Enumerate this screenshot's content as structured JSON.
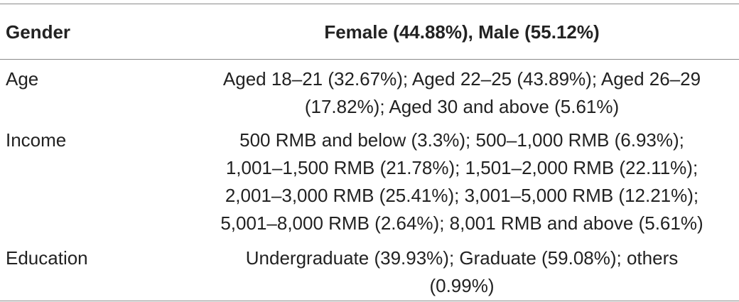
{
  "table": {
    "header": {
      "label": "Gender",
      "value": "Female (44.88%), Male (55.12%)"
    },
    "rows": [
      {
        "label": "Age",
        "lines": [
          "Aged 18–21 (32.67%); Aged 22–25 (43.89%); Aged 26–29",
          "(17.82%); Aged 30 and above (5.61%)"
        ]
      },
      {
        "label": "Income",
        "lines": [
          "500 RMB and below (3.3%); 500–1,000 RMB (6.93%);",
          "1,001–1,500 RMB (21.78%); 1,501–2,000 RMB (22.11%);",
          "2,001–3,000 RMB (25.41%); 3,001–5,000 RMB (12.21%);",
          "5,001–8,000 RMB (2.64%); 8,001 RMB and above (5.61%)"
        ]
      },
      {
        "label": "Education",
        "lines": [
          "Undergraduate (39.93%); Graduate (59.08%); others",
          "(0.99%)"
        ]
      }
    ]
  }
}
